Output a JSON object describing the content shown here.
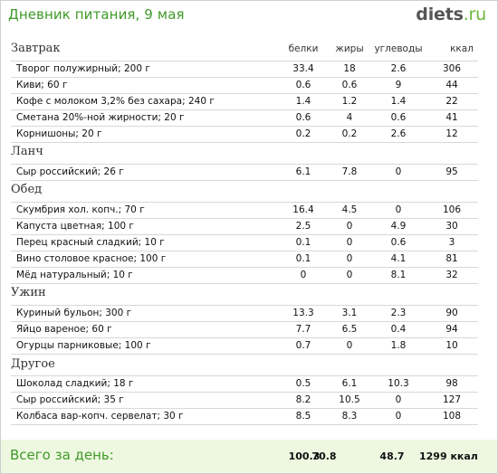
{
  "header": {
    "title": "Дневник питания, 9 мая",
    "logo_main": "diets",
    "logo_tld": ".ru"
  },
  "columns": {
    "protein": "белки",
    "fat": "жиры",
    "carbs": "углеводы",
    "kcal": "ккал"
  },
  "sections": [
    {
      "title": "Завтрак",
      "rows": [
        {
          "name": "Творог полужирный; 200 г",
          "protein": "33.4",
          "fat": "18",
          "carbs": "2.6",
          "kcal": "306"
        },
        {
          "name": "Киви; 60 г",
          "protein": "0.6",
          "fat": "0.6",
          "carbs": "9",
          "kcal": "44"
        },
        {
          "name": "Кофе с молоком 3,2% без сахара; 240 г",
          "protein": "1.4",
          "fat": "1.2",
          "carbs": "1.4",
          "kcal": "22"
        },
        {
          "name": "Сметана 20%-ной жирности; 20 г",
          "protein": "0.6",
          "fat": "4",
          "carbs": "0.6",
          "kcal": "41"
        },
        {
          "name": "Корнишоны; 20 г",
          "protein": "0.2",
          "fat": "0.2",
          "carbs": "2.6",
          "kcal": "12"
        }
      ]
    },
    {
      "title": "Ланч",
      "rows": [
        {
          "name": "Сыр российский; 26 г",
          "protein": "6.1",
          "fat": "7.8",
          "carbs": "0",
          "kcal": "95"
        }
      ]
    },
    {
      "title": "Обед",
      "rows": [
        {
          "name": "Скумбрия хол. копч.; 70 г",
          "protein": "16.4",
          "fat": "4.5",
          "carbs": "0",
          "kcal": "106"
        },
        {
          "name": "Капуста цветная; 100 г",
          "protein": "2.5",
          "fat": "0",
          "carbs": "4.9",
          "kcal": "30"
        },
        {
          "name": "Перец красный сладкий; 10 г",
          "protein": "0.1",
          "fat": "0",
          "carbs": "0.6",
          "kcal": "3"
        },
        {
          "name": "Вино столовое красное; 100 г",
          "protein": "0.1",
          "fat": "0",
          "carbs": "4.1",
          "kcal": "81"
        },
        {
          "name": "Мёд натуральный; 10 г",
          "protein": "0",
          "fat": "0",
          "carbs": "8.1",
          "kcal": "32"
        }
      ]
    },
    {
      "title": "Ужин",
      "rows": [
        {
          "name": "Куриный бульон; 300 г",
          "protein": "13.3",
          "fat": "3.1",
          "carbs": "2.3",
          "kcal": "90"
        },
        {
          "name": "Яйцо вареное; 60 г",
          "protein": "7.7",
          "fat": "6.5",
          "carbs": "0.4",
          "kcal": "94"
        },
        {
          "name": "Огурцы парниковые; 100 г",
          "protein": "0.7",
          "fat": "0",
          "carbs": "1.8",
          "kcal": "10"
        }
      ]
    },
    {
      "title": "Другое",
      "rows": [
        {
          "name": "Шоколад сладкий; 18 г",
          "protein": "0.5",
          "fat": "6.1",
          "carbs": "10.3",
          "kcal": "98"
        },
        {
          "name": "Сыр российский; 35 г",
          "protein": "8.2",
          "fat": "10.5",
          "carbs": "0",
          "kcal": "127"
        },
        {
          "name": "Колбаса вар-копч. сервелат; 30 г",
          "protein": "8.5",
          "fat": "8.3",
          "carbs": "0",
          "kcal": "108"
        }
      ]
    }
  ],
  "totals": {
    "label": "Всего за день:",
    "protein": "100.3",
    "fat": "70.8",
    "carbs": "48.7",
    "kcal": "1299 ккал"
  }
}
